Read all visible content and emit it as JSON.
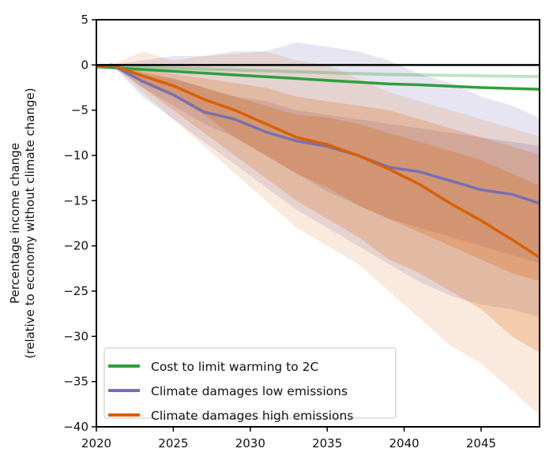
{
  "chart_data": {
    "type": "line",
    "title": "",
    "xlabel": "",
    "ylabel": "Percentage income change",
    "ylabel_line2": "(relative to economy without climate change)",
    "xlim": [
      2020,
      2048.8
    ],
    "ylim": [
      -40,
      5
    ],
    "xticks": [
      2020,
      2025,
      2030,
      2035,
      2040,
      2045
    ],
    "yticks": [
      5,
      0,
      -5,
      -10,
      -15,
      -20,
      -25,
      -30,
      -35,
      -40
    ],
    "legend_position": "bottom-left",
    "x": [
      2020,
      2021,
      2023,
      2025,
      2027,
      2029,
      2031,
      2033,
      2035,
      2037,
      2039,
      2041,
      2043,
      2045,
      2047,
      2049
    ],
    "series": [
      {
        "name": "Cost to limit warming to 2C",
        "color": "#2f9e3c",
        "values": [
          -0.2,
          -0.3,
          -0.5,
          -0.7,
          -0.9,
          -1.1,
          -1.3,
          -1.5,
          -1.7,
          -1.9,
          -2.1,
          -2.2,
          -2.35,
          -2.5,
          -2.6,
          -2.7
        ],
        "secondary_values": [
          -0.1,
          -0.15,
          -0.25,
          -0.35,
          -0.45,
          -0.55,
          -0.65,
          -0.75,
          -0.85,
          -0.95,
          -1.05,
          -1.1,
          -1.15,
          -1.2,
          -1.25,
          -1.3
        ],
        "bands": []
      },
      {
        "name": "Climate damages low emissions",
        "color": "#7570b3",
        "values": [
          -0.2,
          0,
          -1.8,
          -3.3,
          -5.2,
          -6,
          -7.4,
          -8.4,
          -9,
          -10,
          -11.3,
          -11.8,
          -12.8,
          -13.8,
          -14.3,
          -15.4
        ],
        "bands": [
          {
            "upper": [
              0,
              0,
              0.5,
              1,
              1,
              1.5,
              1.5,
              2.5,
              2,
              1.5,
              0.5,
              -1,
              -2,
              -3.5,
              -4.5,
              -6
            ],
            "lower": [
              -0.3,
              0,
              -3.5,
              -6,
              -8.5,
              -11,
              -13.5,
              -16,
              -18,
              -20,
              -22,
              -24,
              -25.5,
              -26.5,
              -27,
              -28
            ],
            "opacity": 0.18
          },
          {
            "upper": [
              0,
              0,
              -1,
              -1.5,
              -2.5,
              -3.5,
              -4,
              -5,
              -5.5,
              -6,
              -6.5,
              -7,
              -7.5,
              -8,
              -8.5,
              -9
            ],
            "lower": [
              -0.2,
              0,
              -2.5,
              -4.5,
              -6.5,
              -8,
              -10,
              -12,
              -14,
              -15.5,
              -17,
              -18,
              -19,
              -20,
              -21,
              -22
            ],
            "opacity": 0.22
          }
        ]
      },
      {
        "name": "Climate damages high emissions",
        "color": "#d95f02",
        "values": [
          -0.2,
          0,
          -1.2,
          -2.3,
          -3.8,
          -5,
          -6.5,
          -8,
          -8.8,
          -10,
          -11.5,
          -13.2,
          -15.3,
          -17.2,
          -19.3,
          -21.5
        ],
        "bands": [
          {
            "upper": [
              0,
              0,
              1.5,
              0.5,
              1,
              1.2,
              1.5,
              0.5,
              0,
              -1.5,
              -3,
              -4,
              -5,
              -6,
              -7,
              -8
            ],
            "lower": [
              -0.3,
              0,
              -3,
              -6,
              -9,
              -12,
              -15,
              -18,
              -20,
              -22,
              -25,
              -28,
              -31,
              -33,
              -36,
              -39
            ],
            "opacity": 0.13
          },
          {
            "upper": [
              0,
              0,
              -0.5,
              -1,
              -1.5,
              -2,
              -2.5,
              -3.5,
              -4,
              -4.5,
              -5,
              -6,
              -7,
              -8,
              -9,
              -10
            ],
            "lower": [
              -0.2,
              0,
              -2.5,
              -5,
              -7.5,
              -10,
              -12.5,
              -15,
              -17,
              -19,
              -21.5,
              -23,
              -25,
              -27,
              -30,
              -32
            ],
            "opacity": 0.22
          },
          {
            "upper": [
              0,
              0,
              -0.8,
              -1.5,
              -2.5,
              -3.5,
              -4.5,
              -5.5,
              -5.8,
              -6.5,
              -7.5,
              -8.5,
              -9.5,
              -10.5,
              -12,
              -13.5
            ],
            "lower": [
              -0.2,
              0,
              -2,
              -3.5,
              -5.5,
              -8,
              -10,
              -12,
              -13.5,
              -15.5,
              -17,
              -18.5,
              -20,
              -21.5,
              -23,
              -24
            ],
            "opacity": 0.25
          }
        ]
      }
    ]
  }
}
